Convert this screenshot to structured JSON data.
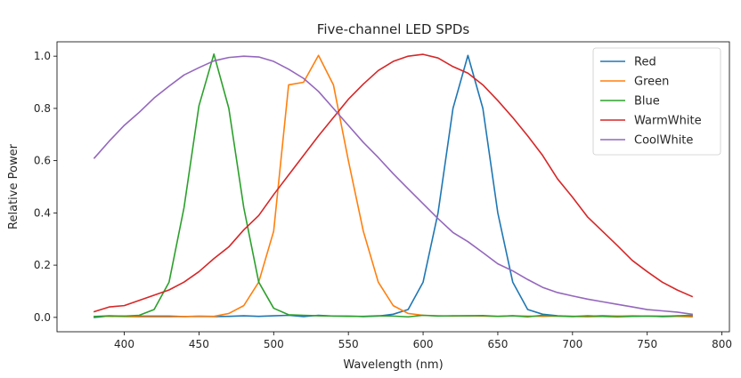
{
  "chart_data": {
    "type": "line",
    "title": "Five-channel LED SPDs",
    "xlabel": "Wavelength (nm)",
    "ylabel": "Relative Power",
    "xlim": [
      355,
      805
    ],
    "ylim": [
      -0.055,
      1.055
    ],
    "xticks": [
      400,
      450,
      500,
      550,
      600,
      650,
      700,
      750,
      800
    ],
    "xtick_labels": [
      "400",
      "450",
      "500",
      "550",
      "600",
      "650",
      "700",
      "750",
      "800"
    ],
    "yticks": [
      0.0,
      0.2,
      0.4,
      0.6,
      0.8,
      1.0
    ],
    "ytick_labels": [
      "0.0",
      "0.2",
      "0.4",
      "0.6",
      "0.8",
      "1.0"
    ],
    "grid": false,
    "legend_position": "top-right",
    "x": [
      380,
      390,
      400,
      410,
      420,
      430,
      440,
      450,
      460,
      470,
      480,
      490,
      500,
      510,
      520,
      530,
      540,
      550,
      560,
      570,
      580,
      590,
      600,
      610,
      620,
      630,
      640,
      650,
      660,
      670,
      680,
      690,
      700,
      710,
      720,
      730,
      740,
      750,
      760,
      770,
      780
    ],
    "series": [
      {
        "name": "Red",
        "color": "#1f77b4",
        "values": [
          0.0,
          0.005,
          0.005,
          0.005,
          0.005,
          0.005,
          0.003,
          0.004,
          0.003,
          0.004,
          0.006,
          0.004,
          0.006,
          0.008,
          0.003,
          0.008,
          0.005,
          0.005,
          0.003,
          0.005,
          0.012,
          0.03,
          0.135,
          0.4,
          0.8,
          1.003,
          0.8,
          0.4,
          0.135,
          0.03,
          0.012,
          0.006,
          0.004,
          0.004,
          0.006,
          0.005,
          0.004,
          0.005,
          0.003,
          0.004,
          0.005
        ]
      },
      {
        "name": "Green",
        "color": "#ff7f0e",
        "values": [
          0.004,
          0.004,
          0.003,
          0.002,
          0.002,
          0.002,
          0.003,
          0.005,
          0.004,
          0.015,
          0.045,
          0.135,
          0.33,
          0.89,
          0.9,
          1.003,
          0.89,
          0.6,
          0.33,
          0.135,
          0.045,
          0.015,
          0.008,
          0.006,
          0.005,
          0.006,
          0.005,
          0.004,
          0.006,
          0.005,
          0.004,
          0.005,
          0.004,
          0.002,
          0.004,
          0.005,
          0.006,
          0.005,
          0.005,
          0.004,
          0.002
        ]
      },
      {
        "name": "Blue",
        "color": "#2ca02c",
        "values": [
          0.003,
          0.006,
          0.005,
          0.008,
          0.03,
          0.135,
          0.42,
          0.81,
          1.008,
          0.8,
          0.42,
          0.135,
          0.035,
          0.01,
          0.008,
          0.006,
          0.005,
          0.004,
          0.004,
          0.006,
          0.005,
          0.002,
          0.008,
          0.005,
          0.006,
          0.006,
          0.007,
          0.004,
          0.006,
          0.002,
          0.008,
          0.005,
          0.003,
          0.006,
          0.004,
          0.002,
          0.004,
          0.005,
          0.004,
          0.006,
          0.008
        ]
      },
      {
        "name": "WarmWhite",
        "color": "#d62728",
        "values": [
          0.022,
          0.04,
          0.045,
          0.065,
          0.085,
          0.105,
          0.135,
          0.175,
          0.225,
          0.27,
          0.335,
          0.39,
          0.47,
          0.545,
          0.62,
          0.695,
          0.765,
          0.835,
          0.893,
          0.945,
          0.98,
          1.0,
          1.007,
          0.993,
          0.96,
          0.935,
          0.89,
          0.83,
          0.765,
          0.695,
          0.62,
          0.53,
          0.46,
          0.385,
          0.33,
          0.275,
          0.218,
          0.175,
          0.135,
          0.105,
          0.08
        ]
      },
      {
        "name": "CoolWhite",
        "color": "#9467bd",
        "values": [
          0.61,
          0.675,
          0.735,
          0.785,
          0.84,
          0.885,
          0.928,
          0.956,
          0.982,
          0.995,
          1.0,
          0.997,
          0.98,
          0.95,
          0.915,
          0.865,
          0.8,
          0.735,
          0.67,
          0.612,
          0.55,
          0.492,
          0.435,
          0.378,
          0.325,
          0.29,
          0.248,
          0.205,
          0.178,
          0.145,
          0.115,
          0.095,
          0.082,
          0.07,
          0.06,
          0.05,
          0.04,
          0.03,
          0.025,
          0.02,
          0.012
        ]
      }
    ]
  }
}
